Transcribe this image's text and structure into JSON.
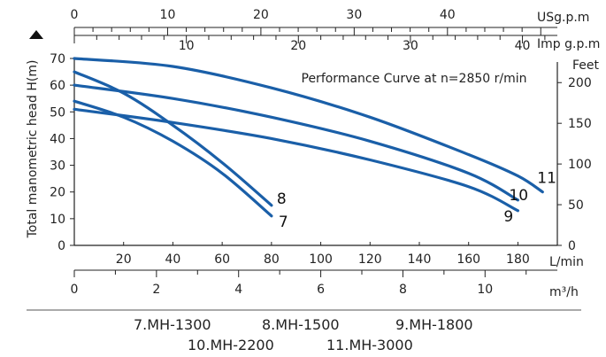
{
  "chart_data": {
    "type": "line",
    "title": "Performance Curve at n=2850 r/min",
    "ylabel": "Total manometric head H(m)",
    "ylim": [
      0,
      70
    ],
    "y_ticks": [
      0,
      10,
      20,
      30,
      40,
      50,
      60,
      70
    ],
    "xlabel": "L/min",
    "xlim": [
      0,
      196
    ],
    "x_ticks": [
      20,
      40,
      60,
      80,
      100,
      120,
      140,
      160,
      180
    ],
    "feet_label": "Feet",
    "feet_ticks": [
      0,
      50,
      100,
      150,
      200
    ],
    "usgpm_label": "USg.p.m",
    "usgpm_ticks": [
      0,
      10,
      20,
      30,
      40
    ],
    "impgpm_label": "Imp g.p.m",
    "impgpm_ticks": [
      10,
      20,
      30,
      40
    ],
    "m3h_label": "m³/h",
    "m3h_ticks": [
      0,
      2,
      4,
      6,
      8,
      10
    ],
    "series": [
      {
        "name": "7.MH-1300",
        "label": "7",
        "points": [
          [
            0,
            54
          ],
          [
            20,
            48
          ],
          [
            40,
            39
          ],
          [
            60,
            27
          ],
          [
            80,
            11
          ]
        ]
      },
      {
        "name": "8.MH-1500",
        "label": "8",
        "points": [
          [
            0,
            65
          ],
          [
            20,
            57
          ],
          [
            40,
            45
          ],
          [
            60,
            31
          ],
          [
            80,
            15
          ]
        ]
      },
      {
        "name": "9.MH-1800",
        "label": "9",
        "points": [
          [
            0,
            51
          ],
          [
            40,
            46
          ],
          [
            80,
            40
          ],
          [
            120,
            32
          ],
          [
            160,
            22
          ],
          [
            180,
            13
          ]
        ]
      },
      {
        "name": "10.MH-2200",
        "label": "10",
        "points": [
          [
            0,
            60
          ],
          [
            40,
            55
          ],
          [
            80,
            48
          ],
          [
            120,
            39
          ],
          [
            160,
            27
          ],
          [
            180,
            17
          ]
        ]
      },
      {
        "name": "11.MH-3000",
        "label": "11",
        "points": [
          [
            0,
            70
          ],
          [
            40,
            67
          ],
          [
            80,
            59
          ],
          [
            120,
            48
          ],
          [
            160,
            34
          ],
          [
            180,
            26
          ],
          [
            190,
            20
          ]
        ]
      }
    ],
    "legend": {
      "row1": [
        "7.MH-1300",
        "8.MH-1500",
        "9.MH-1800"
      ],
      "row2": [
        "10.MH-2200",
        "11.MH-3000"
      ]
    },
    "color": "#1a5fa8"
  }
}
